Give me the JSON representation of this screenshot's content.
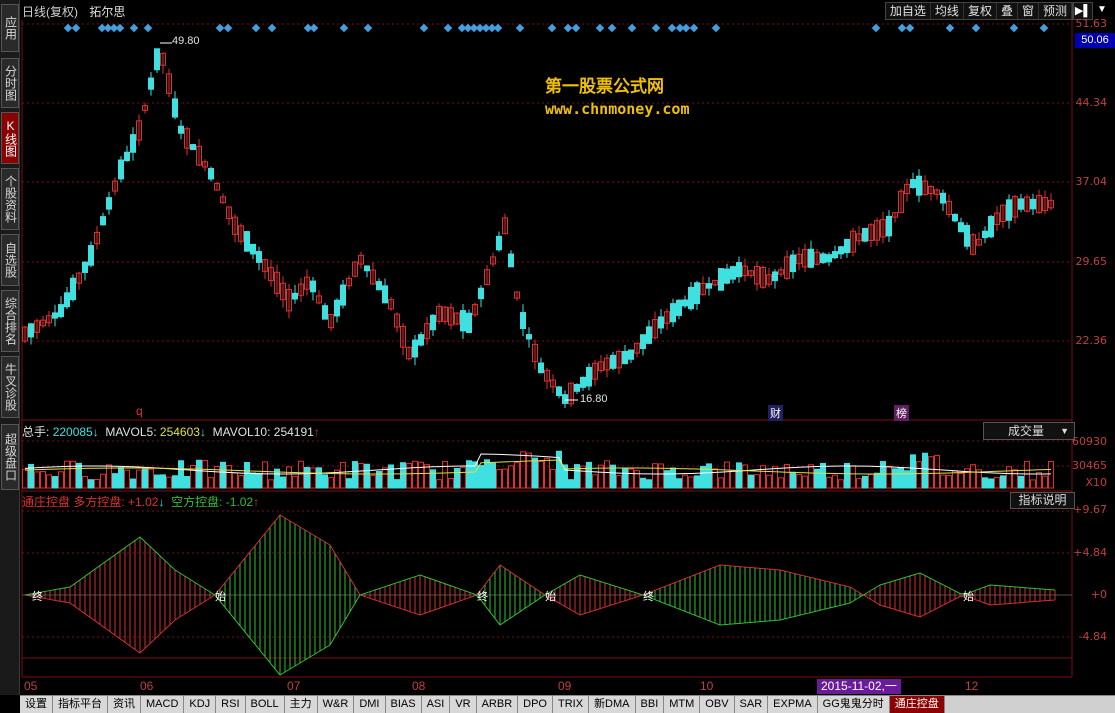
{
  "header": {
    "title": "日线(复权)",
    "stock": "拓尔思"
  },
  "toolbar": [
    "加自选",
    "均线",
    "复权",
    "叠",
    "窗",
    "预测"
  ],
  "sidebar": [
    {
      "label": "应用",
      "active": false
    },
    {
      "label": "分时图",
      "active": false
    },
    {
      "label": "K线图",
      "active": true
    },
    {
      "label": "个股资料",
      "active": false
    },
    {
      "label": "自选股",
      "active": false
    },
    {
      "label": "综合排名",
      "active": false
    },
    {
      "label": "牛叉诊股",
      "active": false
    },
    {
      "label": "超级盘口",
      "active": false
    }
  ],
  "price_axis": [
    "51.63",
    "44.34",
    "37.04",
    "29.65",
    "22.36"
  ],
  "max_price": "50.06",
  "watermark": {
    "title": "第一股票公式网",
    "url": "www.chnmoney.com"
  },
  "annotations": {
    "high": "49.80",
    "low": "16.80",
    "mark_q": "q",
    "mark_cai": "财",
    "mark_bang": "榜"
  },
  "volume": {
    "total_label": "总手:",
    "total_value": "220085",
    "total_arrow": "↓",
    "ma5_label": "MAVOL5:",
    "ma5_value": "254603",
    "ma5_arrow": "↓",
    "ma10_label": "MAVOL10:",
    "ma10_value": "254191",
    "ma10_arrow": "↑",
    "dropdown": "成交量",
    "axis": [
      "60930",
      "30465",
      "X10"
    ]
  },
  "indicator": {
    "name": "通庄控盘",
    "long_label": "多方控盘:",
    "long_value": "+1.02",
    "long_arrow": "↓",
    "short_label": "空方控盘:",
    "short_value": "-1.02",
    "short_arrow": "↑",
    "desc_button": "指标说明",
    "axis": [
      "+9.67",
      "+4.84",
      "+0",
      "-4.84"
    ],
    "signals": [
      "终",
      "始",
      "终",
      "始",
      "终",
      "始"
    ]
  },
  "months": [
    "05",
    "06",
    "07",
    "08",
    "09",
    "10",
    "12"
  ],
  "date_highlight": "2015-11-02,一",
  "bottom_tabs": [
    {
      "label": "设置"
    },
    {
      "label": "指标平台"
    },
    {
      "label": "资讯"
    },
    {
      "label": "MACD"
    },
    {
      "label": "KDJ"
    },
    {
      "label": "RSI"
    },
    {
      "label": "BOLL"
    },
    {
      "label": "主力"
    },
    {
      "label": "W&R"
    },
    {
      "label": "DMI"
    },
    {
      "label": "BIAS"
    },
    {
      "label": "ASI"
    },
    {
      "label": "VR"
    },
    {
      "label": "ARBR"
    },
    {
      "label": "DPO"
    },
    {
      "label": "TRIX"
    },
    {
      "label": "新DMA"
    },
    {
      "label": "BBI"
    },
    {
      "label": "MTM"
    },
    {
      "label": "OBV"
    },
    {
      "label": "SAR"
    },
    {
      "label": "EXPMA"
    },
    {
      "label": "GG鬼鬼分时"
    },
    {
      "label": "通庄控盘",
      "active": true
    }
  ],
  "colors": {
    "up": "#e03030",
    "down": "#40e0e0",
    "grid": "#7a1010",
    "ma5": "#ffffff",
    "ma10": "#e0e040",
    "bull": "#30c030",
    "bear": "#d03030",
    "highlight": "#6a1b9a"
  }
}
